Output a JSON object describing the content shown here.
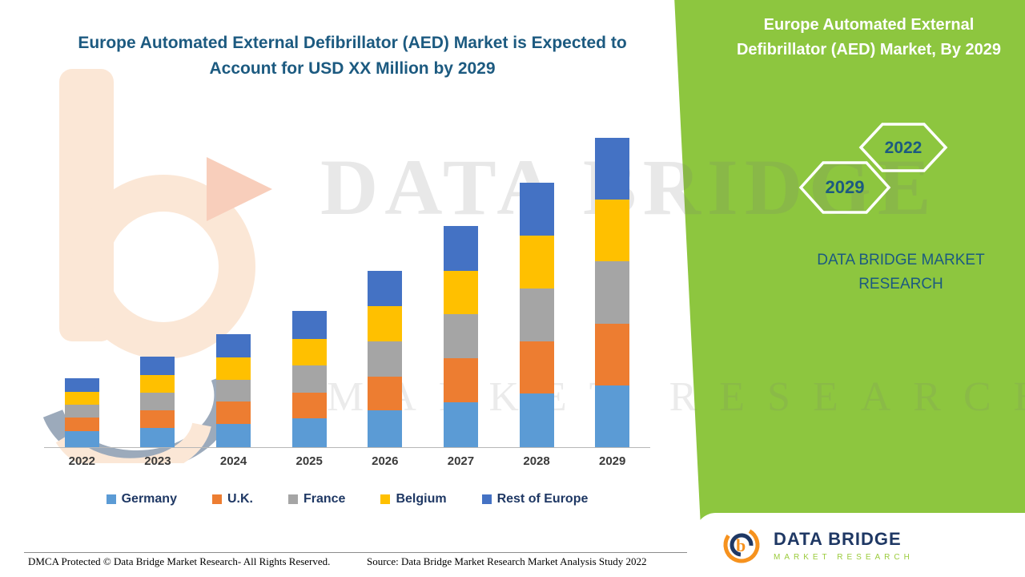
{
  "main_title": "Europe Automated External Defibrillator (AED) Market is Expected to Account for USD XX Million by 2029",
  "right_panel": {
    "title": "Europe Automated External Defibrillator (AED) Market, By 2029",
    "hex_front": "2029",
    "hex_back": "2022",
    "brand_text": "DATA BRIDGE MARKET RESEARCH"
  },
  "watermark": {
    "line1": "DATA BRIDGE",
    "line2": "MARKET RESEARCH"
  },
  "logo_box": {
    "name": "DATA BRIDGE",
    "subtitle": "MARKET RESEARCH"
  },
  "footer": {
    "dmca": "DMCA Protected © Data Bridge Market Research- All Rights Reserved.",
    "source": "Source: Data Bridge Market Research Market Analysis Study 2022"
  },
  "chart_data": {
    "type": "bar",
    "stacked": true,
    "title": "Europe Automated External Defibrillator (AED) Market is Expected to Account for USD XX Million by 2029",
    "categories": [
      "2022",
      "2023",
      "2024",
      "2025",
      "2026",
      "2027",
      "2028",
      "2029"
    ],
    "series": [
      {
        "name": "Germany",
        "color": "#5B9BD5",
        "values": [
          20,
          24,
          29,
          35,
          45,
          55,
          66,
          76
        ]
      },
      {
        "name": "U.K.",
        "color": "#ED7D31",
        "values": [
          16,
          21,
          27,
          32,
          42,
          54,
          64,
          76
        ]
      },
      {
        "name": "France",
        "color": "#A5A5A5",
        "values": [
          16,
          22,
          27,
          33,
          43,
          54,
          65,
          76
        ]
      },
      {
        "name": "Belgium",
        "color": "#FFC000",
        "values": [
          16,
          22,
          27,
          33,
          43,
          54,
          65,
          76
        ]
      },
      {
        "name": "Rest of Europe",
        "color": "#4472C4",
        "values": [
          17,
          22,
          29,
          34,
          44,
          55,
          65,
          76
        ]
      }
    ],
    "xlabel": "",
    "ylabel": "",
    "y_axis_visible": false,
    "legend_position": "bottom"
  }
}
